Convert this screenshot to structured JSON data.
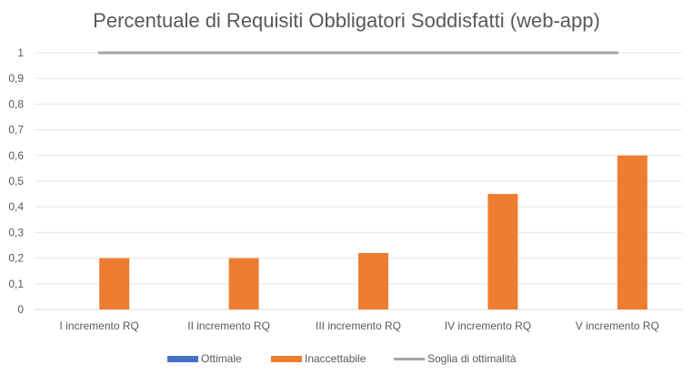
{
  "chart_data": {
    "type": "bar",
    "title": "Percentuale di Requisiti Obbligatori Soddisfatti (web-app)",
    "xlabel": "",
    "ylabel": "",
    "categories": [
      "I incremento RQ",
      "II incremento RQ",
      "III incremento RQ",
      "IV incremento RQ",
      "V incremento RQ"
    ],
    "series": [
      {
        "name": "Ottimale",
        "type": "bar",
        "color": "#4472C4",
        "values": [
          0,
          0,
          0,
          0,
          0
        ]
      },
      {
        "name": "Inaccettabile",
        "type": "bar",
        "color": "#ED7D31",
        "values": [
          0.2,
          0.2,
          0.22,
          0.45,
          0.6
        ]
      },
      {
        "name": "Soglia di ottimalità",
        "type": "line",
        "color": "#A5A5A5",
        "values": [
          1,
          1,
          1,
          1,
          1
        ]
      }
    ],
    "ylim": [
      0,
      1
    ],
    "yticks": [
      "0",
      "0,1",
      "0,2",
      "0,3",
      "0,4",
      "0,5",
      "0,6",
      "0,7",
      "0,8",
      "0,9",
      "1"
    ],
    "grid": true,
    "legend_position": "bottom"
  }
}
